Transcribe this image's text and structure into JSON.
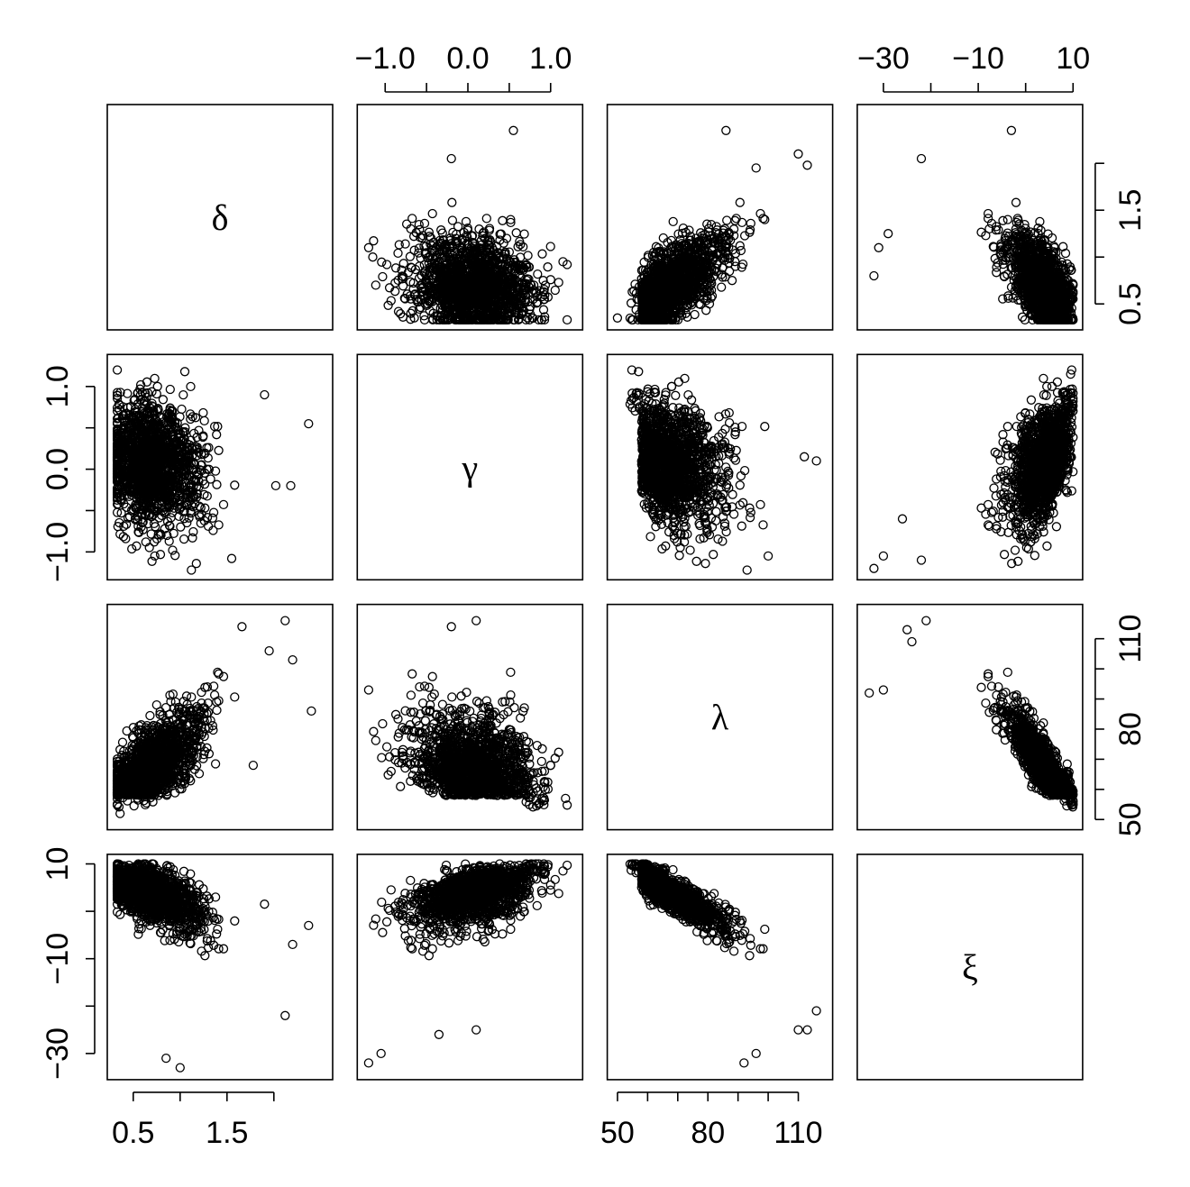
{
  "chart_data": {
    "type": "scatter",
    "subtype": "pairs-matrix",
    "marker": "open-circle",
    "grid": false,
    "variables": [
      {
        "symbol": "δ",
        "range": [
          0.3,
          2.55
        ],
        "ticks": [
          0.5,
          1.0,
          1.5,
          2.0
        ],
        "tick_labels": [
          "0.5",
          "1.5"
        ],
        "tick_label_values": [
          0.5,
          1.5
        ]
      },
      {
        "symbol": "γ",
        "range": [
          -1.25,
          1.3
        ],
        "ticks": [
          -1.0,
          -0.5,
          0.0,
          0.5,
          1.0
        ],
        "tick_labels": [
          "−1.0",
          "0.0",
          "1.0"
        ],
        "tick_label_values": [
          -1.0,
          0.0,
          1.0
        ]
      },
      {
        "symbol": "λ",
        "range": [
          49,
          119
        ],
        "ticks": [
          50,
          60,
          70,
          80,
          90,
          100,
          110
        ],
        "tick_labels": [
          "50",
          "80",
          "110"
        ],
        "tick_label_values": [
          50,
          80,
          110
        ]
      },
      {
        "symbol": "ξ",
        "range": [
          -34,
          10.5
        ],
        "ticks": [
          -30,
          -20,
          -10,
          0,
          10
        ],
        "tick_labels": [
          "−30",
          "−10",
          "10"
        ],
        "tick_label_values": [
          -30,
          -10,
          10
        ]
      }
    ],
    "axis_placement": {
      "top": [
        1,
        3
      ],
      "right": [
        0,
        2
      ],
      "left": [
        1,
        3
      ],
      "bottom": [
        0,
        2
      ]
    },
    "pairs_outliers": [
      {
        "x": "δ",
        "y": "γ",
        "points": [
          [
            2.37,
            0.55
          ],
          [
            0.37,
            0.27
          ],
          [
            1.05,
            1.18
          ],
          [
            1.12,
            -1.22
          ],
          [
            0.73,
            -1.05
          ],
          [
            1.55,
            -1.08
          ],
          [
            2.02,
            -0.2
          ],
          [
            2.18,
            -0.2
          ],
          [
            1.9,
            0.9
          ],
          [
            0.58,
            1.02
          ]
        ]
      },
      {
        "x": "δ",
        "y": "λ",
        "points": [
          [
            2.12,
            116
          ],
          [
            1.66,
            114
          ],
          [
            2.4,
            86
          ],
          [
            1.95,
            106
          ],
          [
            2.2,
            103
          ],
          [
            1.78,
            68
          ],
          [
            0.36,
            52
          ]
        ]
      },
      {
        "x": "δ",
        "y": "ξ",
        "points": [
          [
            2.37,
            -3
          ],
          [
            0.85,
            -31
          ],
          [
            1.0,
            -33
          ],
          [
            2.12,
            -22
          ],
          [
            1.9,
            1.5
          ],
          [
            2.2,
            -7
          ],
          [
            0.37,
            9.5
          ]
        ]
      },
      {
        "x": "γ",
        "y": "δ",
        "points": [
          [
            0.55,
            2.35
          ],
          [
            -0.2,
            2.05
          ],
          [
            -1.2,
            1.1
          ],
          [
            -1.15,
            1.0
          ],
          [
            1.15,
            0.95
          ],
          [
            1.2,
            0.92
          ]
        ]
      },
      {
        "x": "γ",
        "y": "λ",
        "points": [
          [
            0.1,
            116
          ],
          [
            -1.2,
            93
          ],
          [
            1.18,
            57
          ],
          [
            -0.2,
            114
          ],
          [
            0.6,
            60
          ]
        ]
      },
      {
        "x": "γ",
        "y": "ξ",
        "points": [
          [
            -1.2,
            -32
          ],
          [
            -1.05,
            -30
          ],
          [
            1.15,
            8.5
          ],
          [
            -0.35,
            -26
          ],
          [
            0.1,
            -25
          ]
        ]
      },
      {
        "x": "λ",
        "y": "δ",
        "points": [
          [
            86,
            2.35
          ],
          [
            113,
            1.98
          ],
          [
            110,
            2.1
          ],
          [
            96,
            1.95
          ],
          [
            69,
            0.55
          ],
          [
            50,
            0.35
          ]
        ]
      },
      {
        "x": "λ",
        "y": "γ",
        "points": [
          [
            116,
            0.1
          ],
          [
            93,
            -1.22
          ],
          [
            57,
            1.18
          ],
          [
            112,
            0.15
          ],
          [
            100,
            -1.05
          ]
        ]
      },
      {
        "x": "λ",
        "y": "ξ",
        "points": [
          [
            116,
            -21
          ],
          [
            113,
            -25
          ],
          [
            110,
            -25
          ],
          [
            92,
            -32
          ],
          [
            96,
            -30
          ]
        ]
      },
      {
        "x": "ξ",
        "y": "δ",
        "points": [
          [
            -3,
            2.35
          ],
          [
            -22,
            2.05
          ],
          [
            -31,
            1.1
          ],
          [
            -32,
            0.8
          ],
          [
            -29,
            1.25
          ]
        ]
      },
      {
        "x": "ξ",
        "y": "γ",
        "points": [
          [
            -32,
            -1.2
          ],
          [
            -30,
            -1.05
          ],
          [
            9.5,
            1.15
          ],
          [
            -26,
            -0.6
          ],
          [
            -22,
            -1.1
          ]
        ]
      },
      {
        "x": "ξ",
        "y": "λ",
        "points": [
          [
            -21,
            116
          ],
          [
            -25,
            113
          ],
          [
            -33,
            92
          ],
          [
            -30,
            93
          ],
          [
            -24,
            109
          ]
        ]
      }
    ]
  }
}
